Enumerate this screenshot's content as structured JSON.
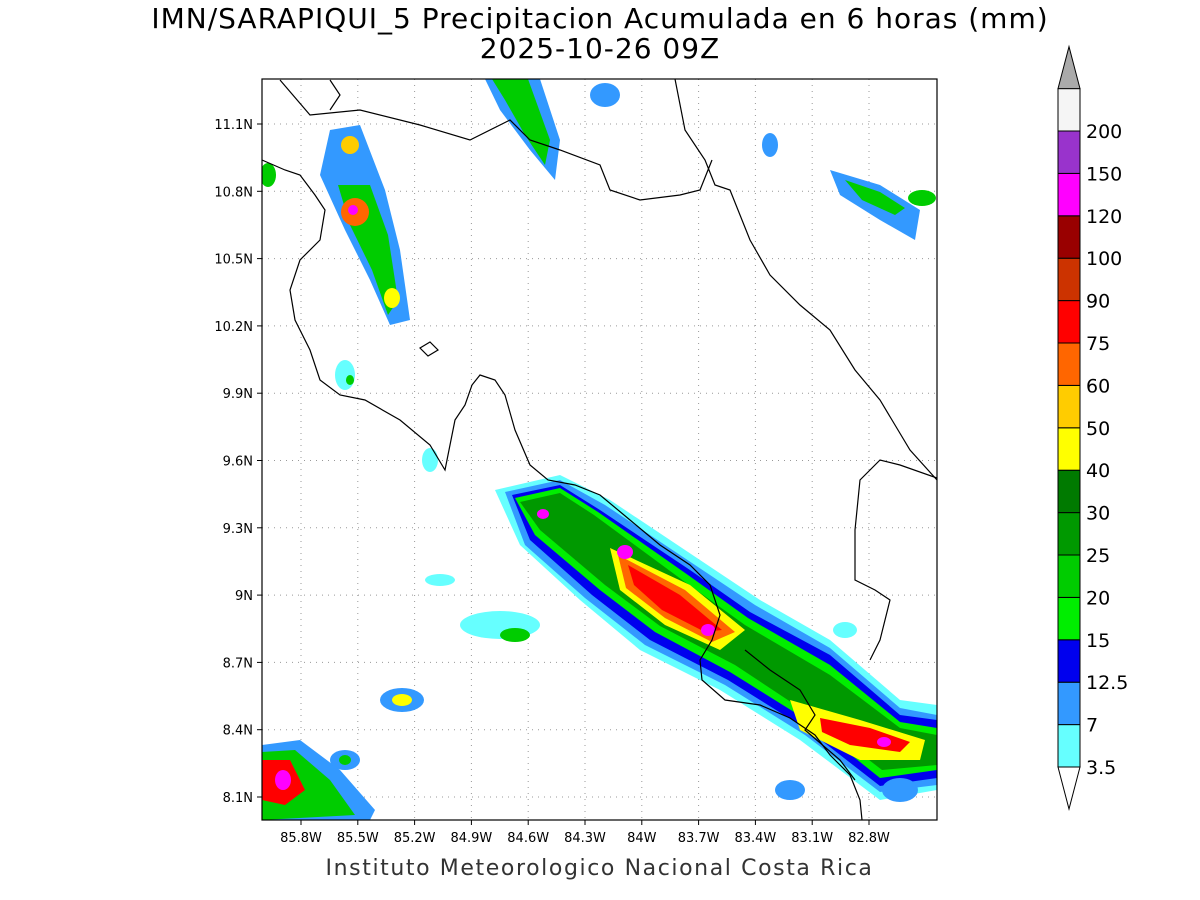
{
  "header": {
    "title": "IMN/SARAPIQUI_5 Precipitacion Acumulada en 6 horas (mm)",
    "datetime": "2025-10-26 09Z"
  },
  "footer": {
    "credit": "Instituto Meteorologico Nacional Costa Rica"
  },
  "map": {
    "lat_labels": [
      "11.1N",
      "10.8N",
      "10.5N",
      "10.2N",
      "9.9N",
      "9.6N",
      "9.3N",
      "9N",
      "8.7N",
      "8.4N",
      "8.1N"
    ],
    "lon_labels": [
      "85.8W",
      "85.5W",
      "85.2W",
      "84.9W",
      "84.6W",
      "84.3W",
      "84W",
      "83.7W",
      "83.4W",
      "83.1W",
      "82.8W"
    ],
    "lon_range": [
      -86.05,
      -83.05
    ],
    "lat_range": [
      8.0,
      11.3
    ],
    "grid": true
  },
  "colorbar": {
    "unit": "mm",
    "levels": [
      {
        "label": "3.5",
        "color": "#66ffff"
      },
      {
        "label": "7",
        "color": "#3399ff"
      },
      {
        "label": "12.5",
        "color": "#0000ee"
      },
      {
        "label": "15",
        "color": "#00ee00"
      },
      {
        "label": "20",
        "color": "#00cc00"
      },
      {
        "label": "25",
        "color": "#009900"
      },
      {
        "label": "30",
        "color": "#007a00"
      },
      {
        "label": "40",
        "color": "#ffff00"
      },
      {
        "label": "50",
        "color": "#ffcc00"
      },
      {
        "label": "60",
        "color": "#ff6600"
      },
      {
        "label": "75",
        "color": "#ff0000"
      },
      {
        "label": "90",
        "color": "#cc3300"
      },
      {
        "label": "100",
        "color": "#990000"
      },
      {
        "label": "120",
        "color": "#ff00ff"
      },
      {
        "label": "150",
        "color": "#9933cc"
      },
      {
        "label": "200",
        "color": "#f5f5f5"
      }
    ],
    "under_color": "#ffffff",
    "over_color": "#aaaaaa"
  }
}
